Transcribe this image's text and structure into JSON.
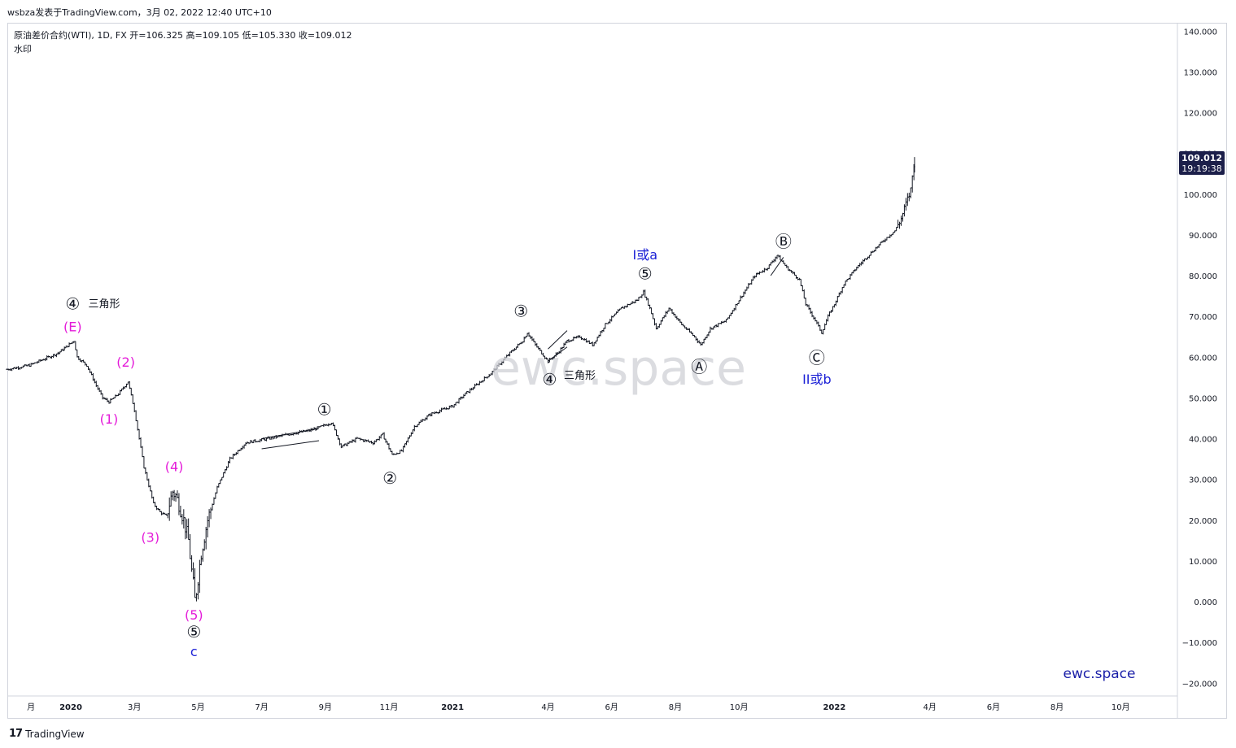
{
  "header": {
    "publisher_line": "wsbza发表于TradingView.com，3月 02, 2022 12:40 UTC+10"
  },
  "legend": {
    "symbol_line": "原油差价合约(WTI), 1D, FX  开=106.325  高=109.105  低=105.330  收=109.012",
    "watermark_label": "水印"
  },
  "watermark": {
    "text": "ewc.space"
  },
  "brand": {
    "text": "ewc.space"
  },
  "footer": {
    "logo": "17",
    "brand_name": "TradingView"
  },
  "price_tag": {
    "price": "109.012",
    "countdown": "19:19:38"
  },
  "colors": {
    "bars": "#131722",
    "magenta": "#e41bd9",
    "blue": "#1a1fd6",
    "price_tag_bg": "#1c1f4a"
  },
  "chart_data": {
    "type": "ohlc",
    "y_ticks": [
      "140.000",
      "130.000",
      "120.000",
      "110.000",
      "100.000",
      "90.000",
      "80.000",
      "70.000",
      "60.000",
      "50.000",
      "40.000",
      "30.000",
      "20.000",
      "10.000",
      "0.000",
      "−10.000",
      "−20.000"
    ],
    "y_tick_values": [
      140,
      130,
      120,
      110,
      100,
      90,
      80,
      70,
      60,
      50,
      40,
      30,
      20,
      10,
      0,
      -10,
      -20
    ],
    "ylim": [
      -20,
      140
    ],
    "x_ticks": [
      {
        "label": "月",
        "t": -1.25
      },
      {
        "label": "2020",
        "t": 0
      },
      {
        "label": "3月",
        "t": 2
      },
      {
        "label": "5月",
        "t": 4
      },
      {
        "label": "7月",
        "t": 6
      },
      {
        "label": "9月",
        "t": 8
      },
      {
        "label": "11月",
        "t": 10
      },
      {
        "label": "2021",
        "t": 12
      },
      {
        "label": "4月",
        "t": 15
      },
      {
        "label": "6月",
        "t": 17
      },
      {
        "label": "8月",
        "t": 19
      },
      {
        "label": "10月",
        "t": 21
      },
      {
        "label": "2022",
        "t": 24
      },
      {
        "label": "4月",
        "t": 27
      },
      {
        "label": "6月",
        "t": 29
      },
      {
        "label": "8月",
        "t": 31
      },
      {
        "label": "10月",
        "t": 33
      }
    ],
    "bold_x_ticks": [
      "2020",
      "2021",
      "2022"
    ],
    "price_path": [
      [
        -2,
        57
      ],
      [
        -1.3,
        58
      ],
      [
        -0.4,
        61
      ],
      [
        0.1,
        64
      ],
      [
        0.2,
        60
      ],
      [
        0.5,
        58
      ],
      [
        0.8,
        53
      ],
      [
        1.0,
        50
      ],
      [
        1.2,
        49
      ],
      [
        1.5,
        51
      ],
      [
        1.8,
        54
      ],
      [
        2.0,
        47
      ],
      [
        2.3,
        33
      ],
      [
        2.6,
        24
      ],
      [
        2.8,
        22
      ],
      [
        3.0,
        21
      ],
      [
        3.2,
        27
      ],
      [
        3.3,
        26
      ],
      [
        3.4,
        24
      ],
      [
        3.55,
        20
      ],
      [
        3.7,
        15
      ],
      [
        3.9,
        0
      ],
      [
        4.1,
        12
      ],
      [
        4.3,
        20
      ],
      [
        4.6,
        28
      ],
      [
        5.0,
        35
      ],
      [
        5.5,
        39
      ],
      [
        6.2,
        40
      ],
      [
        6.8,
        41
      ],
      [
        7.5,
        42
      ],
      [
        7.9,
        43
      ],
      [
        8.2,
        44
      ],
      [
        8.5,
        38
      ],
      [
        9.0,
        40
      ],
      [
        9.5,
        39
      ],
      [
        9.8,
        41
      ],
      [
        10.1,
        36
      ],
      [
        10.4,
        37
      ],
      [
        10.8,
        43
      ],
      [
        11.3,
        46
      ],
      [
        12.0,
        48
      ],
      [
        12.4,
        51
      ],
      [
        13.2,
        56
      ],
      [
        13.8,
        61
      ],
      [
        14.2,
        64
      ],
      [
        14.35,
        66
      ],
      [
        14.6,
        63
      ],
      [
        15.0,
        59
      ],
      [
        15.3,
        61
      ],
      [
        15.6,
        64
      ],
      [
        16.0,
        65
      ],
      [
        16.4,
        63
      ],
      [
        16.8,
        68
      ],
      [
        17.3,
        72
      ],
      [
        17.8,
        74
      ],
      [
        18.0,
        76
      ],
      [
        18.2,
        72
      ],
      [
        18.4,
        67
      ],
      [
        18.8,
        72
      ],
      [
        19.2,
        68
      ],
      [
        19.6,
        65
      ],
      [
        19.8,
        63
      ],
      [
        20.1,
        67
      ],
      [
        20.6,
        69
      ],
      [
        21.0,
        74
      ],
      [
        21.5,
        80
      ],
      [
        21.9,
        82
      ],
      [
        22.2,
        85
      ],
      [
        22.5,
        82
      ],
      [
        22.9,
        79
      ],
      [
        23.1,
        73
      ],
      [
        23.4,
        69
      ],
      [
        23.6,
        66
      ],
      [
        23.8,
        70
      ],
      [
        24.0,
        73
      ],
      [
        24.3,
        78
      ],
      [
        24.7,
        82
      ],
      [
        25.2,
        86
      ],
      [
        25.6,
        89
      ],
      [
        25.9,
        91
      ],
      [
        26.1,
        94
      ],
      [
        26.4,
        101
      ],
      [
        26.52,
        109
      ]
    ],
    "triangle_lines": [
      [
        [
          6.0,
          40
        ],
        [
          7.8,
          42.5
        ]
      ],
      [
        [
          6.0,
          37.5
        ],
        [
          7.8,
          39.5
        ]
      ],
      [
        [
          15.0,
          62
        ],
        [
          15.6,
          66.5
        ]
      ],
      [
        [
          15.0,
          59
        ],
        [
          15.6,
          62.5
        ]
      ],
      [
        [
          22.0,
          80
        ],
        [
          22.4,
          84.5
        ]
      ]
    ],
    "annotations": [
      {
        "text": "④",
        "t": 0.06,
        "v": 73.2,
        "color": "black",
        "circled": true
      },
      {
        "text": "三角形",
        "t": 0.55,
        "v": 73.2,
        "color": "black",
        "size": 13
      },
      {
        "text": "(E)",
        "t": 0.06,
        "v": 67.5,
        "color": "magenta"
      },
      {
        "text": "(2)",
        "t": 1.73,
        "v": 58.8,
        "color": "magenta"
      },
      {
        "text": "(1)",
        "t": 1.2,
        "v": 44.8,
        "color": "magenta"
      },
      {
        "text": "(4)",
        "t": 3.25,
        "v": 33.2,
        "color": "magenta"
      },
      {
        "text": "(3)",
        "t": 2.5,
        "v": 15.8,
        "color": "magenta"
      },
      {
        "text": "(5)",
        "t": 3.87,
        "v": -3.2,
        "color": "magenta"
      },
      {
        "text": "⑤",
        "t": 3.87,
        "v": -7.3,
        "color": "black",
        "circled": true
      },
      {
        "text": "c",
        "t": 3.87,
        "v": -12.2,
        "color": "blue"
      },
      {
        "text": "①",
        "t": 7.97,
        "v": 47.2,
        "color": "black",
        "circled": true
      },
      {
        "text": "②",
        "t": 10.03,
        "v": 30.4,
        "color": "black",
        "circled": true
      },
      {
        "text": "③",
        "t": 14.15,
        "v": 71.4,
        "color": "black",
        "circled": true
      },
      {
        "text": "④",
        "t": 15.05,
        "v": 54.6,
        "color": "black",
        "circled": true
      },
      {
        "text": "三角形",
        "t": 15.5,
        "v": 55.6,
        "color": "black",
        "size": 13
      },
      {
        "text": "I或a",
        "t": 18.05,
        "v": 85.1,
        "color": "blue"
      },
      {
        "text": "⑤",
        "t": 18.05,
        "v": 80.5,
        "color": "black",
        "circled": true
      },
      {
        "text": "Ⓐ",
        "t": 19.75,
        "v": 57.7,
        "color": "black",
        "circled": true
      },
      {
        "text": "Ⓑ",
        "t": 22.4,
        "v": 88.4,
        "color": "black",
        "circled": true
      },
      {
        "text": "Ⓒ",
        "t": 23.45,
        "v": 59.9,
        "color": "black",
        "circled": true
      },
      {
        "text": "II或b",
        "t": 23.45,
        "v": 54.6,
        "color": "blue"
      }
    ]
  }
}
